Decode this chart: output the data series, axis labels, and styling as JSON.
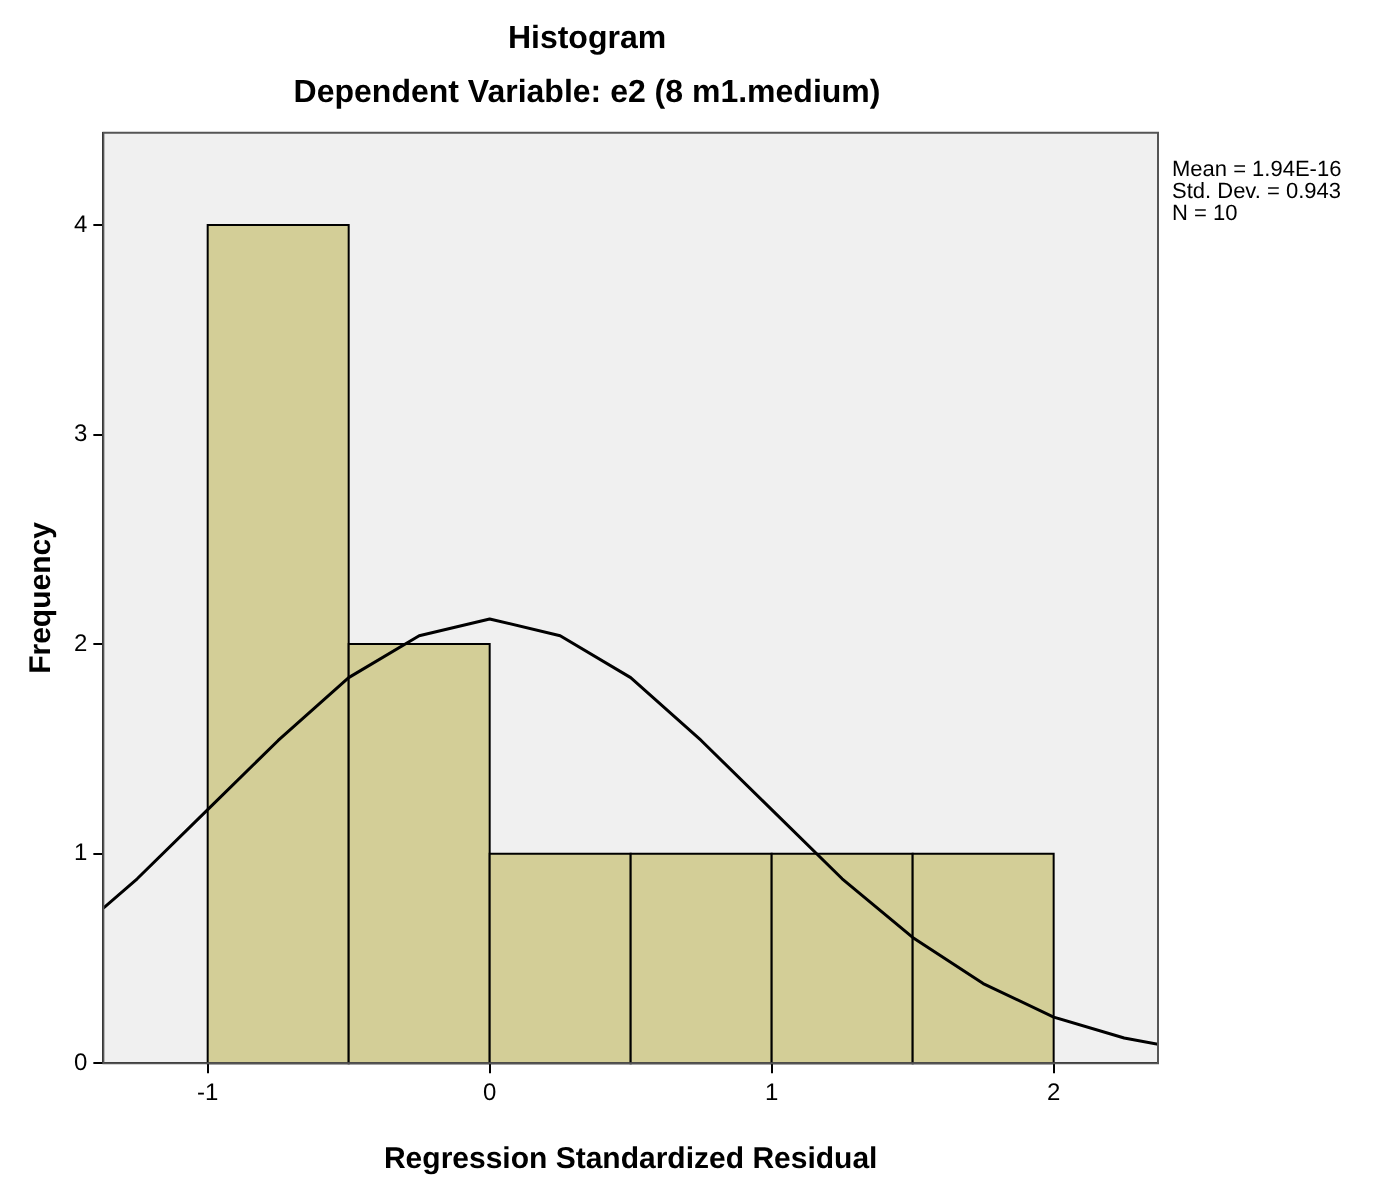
{
  "chart_data": {
    "type": "histogram",
    "title": "Histogram",
    "subtitle": "Dependent Variable: e2 (8 m1.medium)",
    "xlabel": "Regression Standardized Residual",
    "ylabel": "Frequency",
    "bins": [
      -1,
      -0.5,
      0,
      0.5,
      1,
      1.5,
      2
    ],
    "values": [
      4,
      2,
      1,
      1,
      1,
      1
    ],
    "color": "#d3ce97",
    "series": [
      {
        "type": "line",
        "color": "#000000",
        "x": [
          -1.37,
          -1.25,
          -1,
          -0.75,
          -0.5,
          -0.25,
          0,
          0.25,
          0.5,
          0.75,
          1,
          1.25,
          1.5,
          1.75,
          2,
          2.25,
          2.37
        ],
        "values": [
          0.74,
          0.88,
          1.21,
          1.54,
          1.84,
          2.04,
          2.12,
          2.04,
          1.84,
          1.54,
          1.21,
          0.88,
          0.6,
          0.38,
          0.22,
          0.12,
          0.09
        ]
      }
    ],
    "xlim": [
      -1.37,
      2.37
    ],
    "xticks": [
      -1,
      0,
      1,
      2
    ],
    "ylim": [
      0,
      4.44
    ],
    "yticks": [
      0,
      1,
      2,
      3,
      4
    ],
    "annotations": [
      "Mean = 1.94E-16",
      "Std. Dev. = 0.943",
      "N = 10"
    ],
    "grid": false,
    "legend": false,
    "marker": "none",
    "line_style": "solid"
  }
}
